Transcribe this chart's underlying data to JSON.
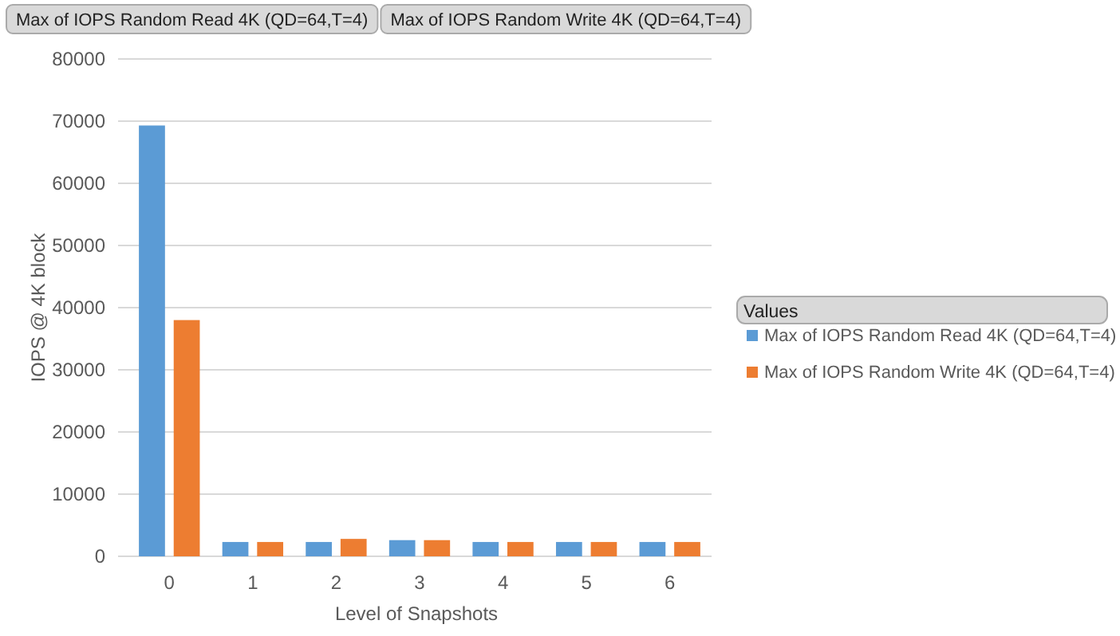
{
  "chart_data": {
    "type": "bar",
    "xlabel": "Level of Snapshots",
    "ylabel": "IOPS @ 4K block",
    "legend_title": "Values",
    "annotations": [
      "Max of IOPS Random Read 4K (QD=64,T=4)",
      "Max of IOPS Random Write 4K (QD=64,T=4)"
    ],
    "categories": [
      "0",
      "1",
      "2",
      "3",
      "4",
      "5",
      "6"
    ],
    "series": [
      {
        "name": "Max of IOPS Random Read 4K (QD=64,T=4)",
        "color": "#5b9bd5",
        "values": [
          69300,
          2300,
          2300,
          2600,
          2300,
          2300,
          2300
        ]
      },
      {
        "name": "Max of IOPS Random Write 4K (QD=64,T=4)",
        "color": "#ed7d31",
        "values": [
          38000,
          2300,
          2800,
          2600,
          2300,
          2300,
          2300
        ]
      }
    ],
    "ylim": [
      0,
      80000
    ],
    "yticks": [
      0,
      10000,
      20000,
      30000,
      40000,
      50000,
      60000,
      70000,
      80000
    ],
    "grid": "y",
    "legend": "right"
  }
}
